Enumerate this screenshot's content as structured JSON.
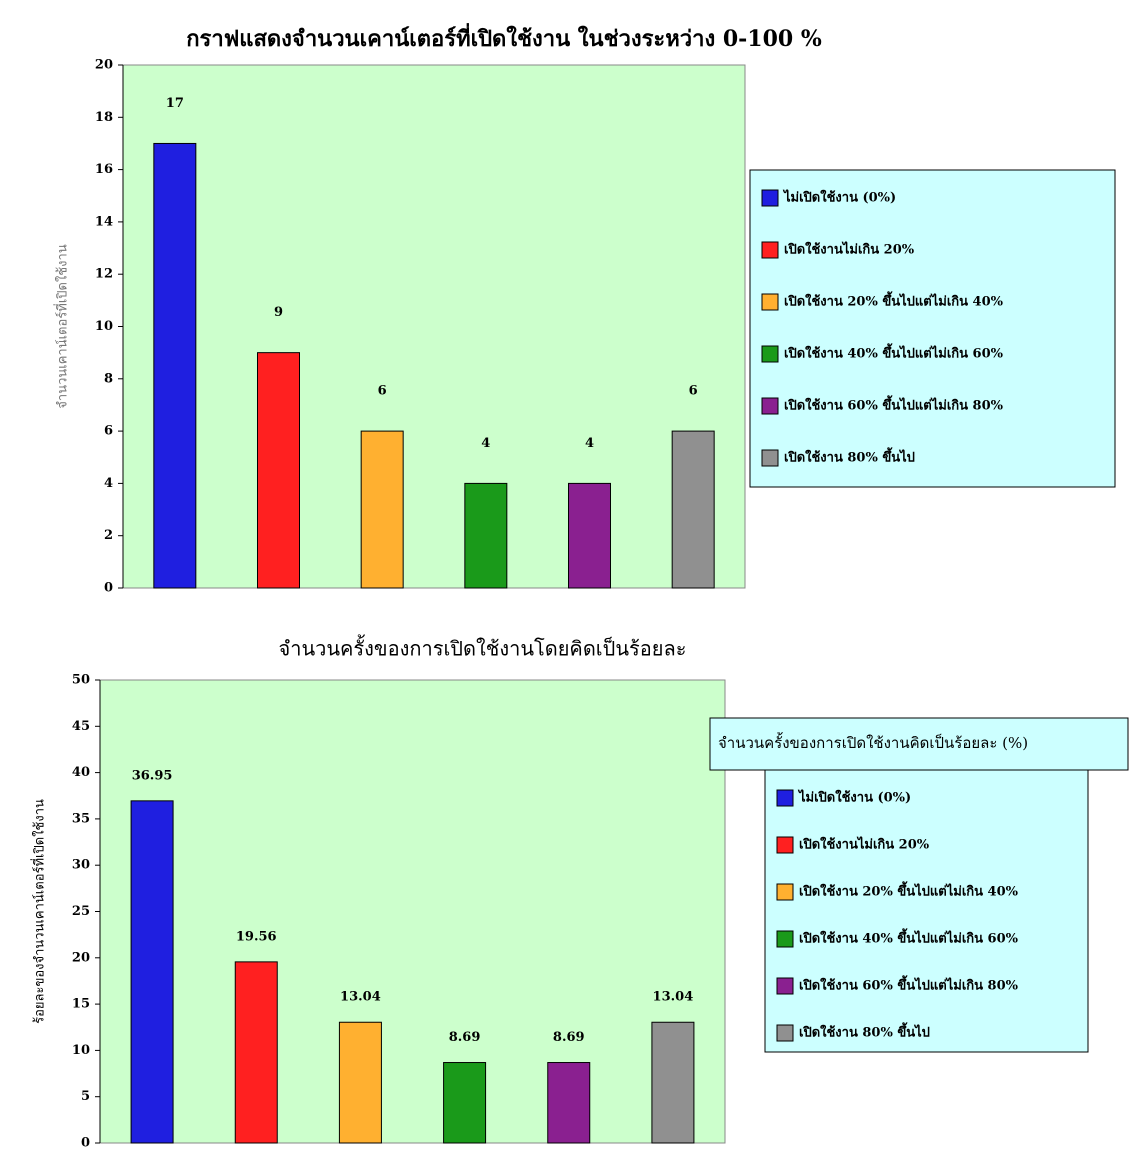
{
  "chart_data": [
    {
      "type": "bar",
      "title": "กราฟแสดงจำนวนเคาน์เตอร์ที่เปิดใช้งาน ในช่วงระหว่าง 0-100 %",
      "y_label": "จำนวนเคาน์เตอร์ที่เปิดใช้งาน",
      "categories": [
        "ไม่เปิดใช้งาน (0%)",
        "เปิดใช้งานไม่เกิน 20%",
        "เปิดใช้งาน 20% ขึ้นไปแต่ไม่เกิน 40%",
        "เปิดใช้งาน 40% ขึ้นไปแต่ไม่เกิน 60%",
        "เปิดใช้งาน 60% ขึ้นไปแต่ไม่เกิน 80%",
        "เปิดใช้งาน 80% ขึ้นไป"
      ],
      "values": [
        17,
        9,
        6,
        4,
        4,
        6
      ],
      "colors": [
        "#1f1fe0",
        "#ff2020",
        "#ffb030",
        "#1a9a1a",
        "#8a2090",
        "#909090"
      ],
      "ylim": [
        0,
        20
      ],
      "yticks": [
        0,
        2,
        4,
        6,
        8,
        10,
        12,
        14,
        16,
        18,
        20
      ],
      "legend": "right"
    },
    {
      "type": "bar",
      "title": "จำนวนครั้งของการเปิดใช้งานโดยคิดเป็นร้อยละ",
      "y_label": "ร้อยละของจำนวนเคาน์เตอร์ที่เปิดใช้งาน",
      "legend_title": "จำนวนครั้งของการเปิดใช้งานคิดเป็นร้อยละ (%)",
      "categories": [
        "ไม่เปิดใช้งาน (0%)",
        "เปิดใช้งานไม่เกิน 20%",
        "เปิดใช้งาน 20% ขึ้นไปแต่ไม่เกิน 40%",
        "เปิดใช้งาน 40% ขึ้นไปแต่ไม่เกิน 60%",
        "เปิดใช้งาน 60% ขึ้นไปแต่ไม่เกิน 80%",
        "เปิดใช้งาน 80% ขึ้นไป"
      ],
      "values": [
        36.95,
        19.56,
        13.04,
        8.69,
        8.69,
        13.04
      ],
      "colors": [
        "#1f1fe0",
        "#ff2020",
        "#ffb030",
        "#1a9a1a",
        "#8a2090",
        "#909090"
      ],
      "ylim": [
        0,
        50
      ],
      "yticks": [
        0,
        5,
        10,
        15,
        20,
        25,
        30,
        35,
        40,
        45,
        50
      ],
      "legend": "right"
    }
  ]
}
